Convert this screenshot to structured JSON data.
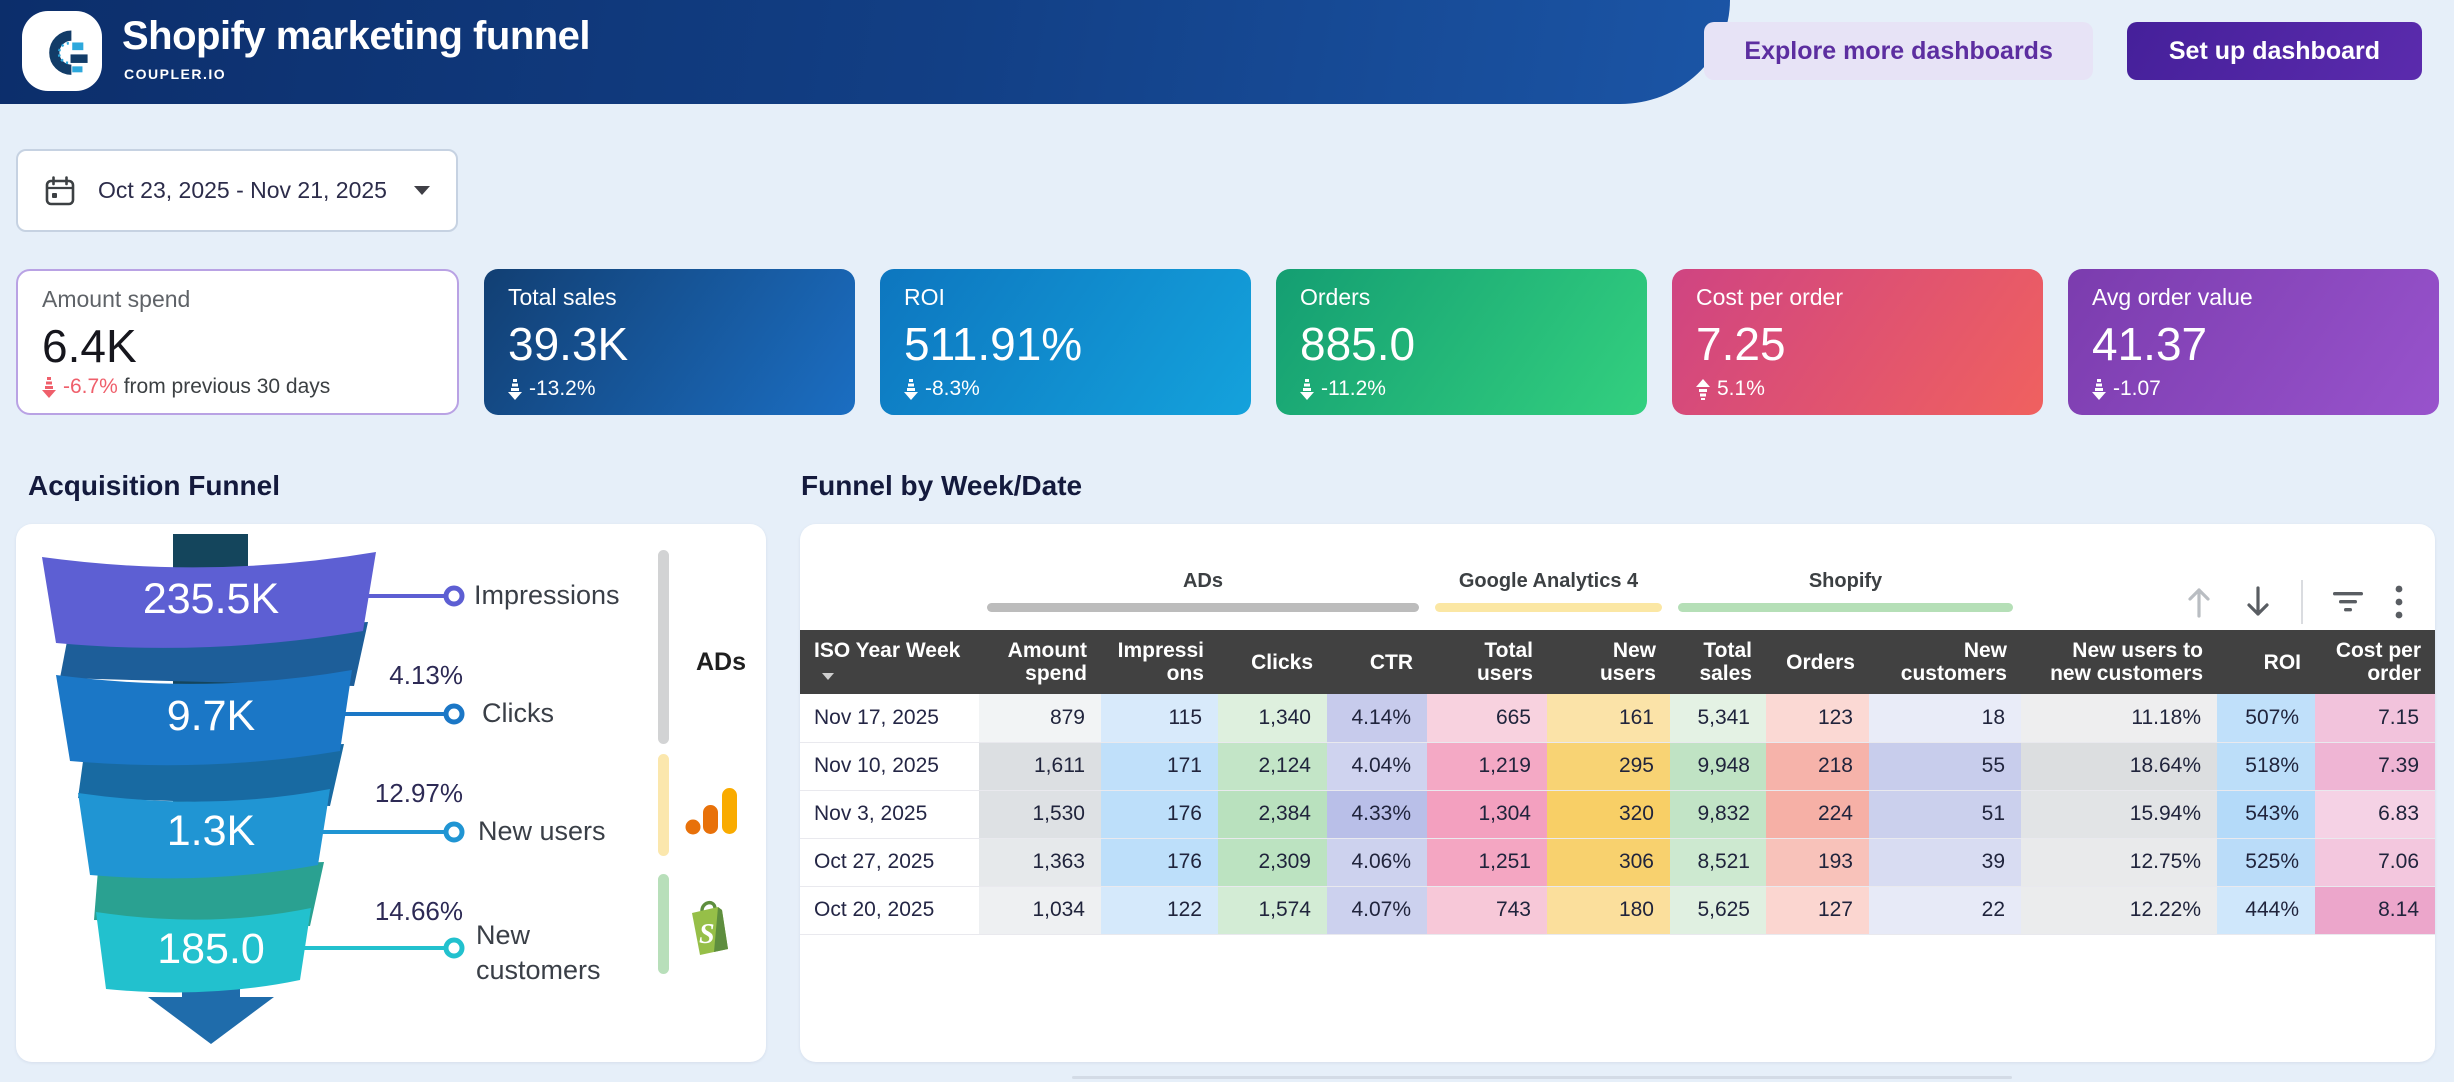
{
  "header": {
    "title": "Shopify marketing funnel",
    "subtitle": "COUPLER.IO",
    "actions": {
      "explore": "Explore more dashboards",
      "setup": "Set up dashboard"
    }
  },
  "filters": {
    "date_range": "Oct 23, 2025 - Nov 21, 2025"
  },
  "kpis": [
    {
      "label": "Amount spend",
      "value": "6.4K",
      "delta": "-6.7%",
      "note": " from previous 30 days",
      "direction": "down"
    },
    {
      "label": "Total sales",
      "value": "39.3K",
      "delta": "-13.2%",
      "note": "",
      "direction": "down"
    },
    {
      "label": "ROI",
      "value": "511.91%",
      "delta": "-8.3%",
      "note": "",
      "direction": "down"
    },
    {
      "label": "Orders",
      "value": "885.0",
      "delta": "-11.2%",
      "note": "",
      "direction": "down"
    },
    {
      "label": "Cost per order",
      "value": "7.25",
      "delta": "5.1%",
      "note": "",
      "direction": "up"
    },
    {
      "label": "Avg order value",
      "value": "41.37",
      "delta": "-1.07",
      "note": "",
      "direction": "down"
    }
  ],
  "funnel": {
    "heading": "Acquisition Funnel",
    "stages": [
      {
        "value": "235.5K",
        "label": "Impressions",
        "conversion": ""
      },
      {
        "value": "9.7K",
        "label": "Clicks",
        "conversion": "4.13%"
      },
      {
        "value": "1.3K",
        "label": "New users",
        "conversion": "12.97%"
      },
      {
        "value": "185.0",
        "label": "New customers",
        "conversion": "14.66%"
      }
    ],
    "sources": {
      "ads_label": "ADs",
      "ga_icon": "google-analytics-icon",
      "shopify_icon": "shopify-icon"
    }
  },
  "table": {
    "heading": "Funnel by Week/Date",
    "groups": [
      {
        "label": "ADs"
      },
      {
        "label": "Google Analytics 4"
      },
      {
        "label": "Shopify"
      }
    ],
    "columns": [
      "ISO Year Week",
      "Amount spend",
      "Impressions",
      "Clicks",
      "CTR",
      "Total users",
      "New users",
      "Total sales",
      "Orders",
      "New customers",
      "New users to new customers",
      "ROI",
      "Cost per order"
    ],
    "rows": [
      {
        "date": "Nov 17, 2025",
        "values": [
          "879",
          "115",
          "1,340",
          "4.14%",
          "665",
          "161",
          "5,341",
          "123",
          "18",
          "11.18%",
          "507%",
          "7.15"
        ],
        "colors": [
          "#f2f4f5",
          "#d8eafb",
          "#def0de",
          "#c7cbec",
          "#f8d2df",
          "#fbe3a8",
          "#e4f2e4",
          "#fbd9d4",
          "#e9ecf8",
          "#eeeeef",
          "#c0e0fa",
          "#f2c3dc"
        ]
      },
      {
        "date": "Nov 10, 2025",
        "values": [
          "1,611",
          "171",
          "2,124",
          "4.04%",
          "1,219",
          "295",
          "9,948",
          "218",
          "55",
          "18.64%",
          "518%",
          "7.39"
        ],
        "colors": [
          "#dcdfe2",
          "#c0e0fa",
          "#c3e5c7",
          "#cfd3ef",
          "#f4a9c5",
          "#f8d374",
          "#c0e3c4",
          "#f6b3aa",
          "#c8cdec",
          "#dcdee0",
          "#bcdef9",
          "#efb5d4"
        ]
      },
      {
        "date": "Nov 3, 2025",
        "values": [
          "1,530",
          "176",
          "2,384",
          "4.33%",
          "1,304",
          "320",
          "9,832",
          "224",
          "51",
          "15.94%",
          "543%",
          "6.83"
        ],
        "colors": [
          "#dee1e4",
          "#bddffa",
          "#b9e1be",
          "#b9bfe8",
          "#f3a0bf",
          "#f8cf66",
          "#c2e4c6",
          "#f6b0a6",
          "#cbd0ed",
          "#e2e4e6",
          "#b4daf9",
          "#f5d2e5"
        ]
      },
      {
        "date": "Oct 27, 2025",
        "values": [
          "1,363",
          "176",
          "2,309",
          "4.06%",
          "1,251",
          "306",
          "8,521",
          "193",
          "39",
          "12.75%",
          "525%",
          "7.06"
        ],
        "colors": [
          "#e6e9eb",
          "#bddffa",
          "#bce3c1",
          "#cdd2ee",
          "#f4a6c2",
          "#f8d16e",
          "#cde9d0",
          "#f8c2ba",
          "#d8dcf2",
          "#e9eaeb",
          "#badcf9",
          "#f3c7de"
        ]
      },
      {
        "date": "Oct 20, 2025",
        "values": [
          "1,034",
          "122",
          "1,574",
          "4.07%",
          "743",
          "180",
          "5,625",
          "127",
          "22",
          "12.22%",
          "444%",
          "8.14"
        ],
        "colors": [
          "#eef0f2",
          "#d5e9fb",
          "#d3ecd5",
          "#ccd1ee",
          "#f7c8d8",
          "#fbdf9c",
          "#e0f0e1",
          "#fbd6d0",
          "#e7eaf7",
          "#ebeced",
          "#cfe7fb",
          "#eca6cb"
        ]
      }
    ]
  },
  "chart_data": [
    {
      "type": "funnel",
      "title": "Acquisition Funnel",
      "stages": [
        "Impressions",
        "Clicks",
        "New users",
        "New customers"
      ],
      "values": [
        235500,
        9700,
        1300,
        185
      ],
      "conversion_pct": [
        null,
        4.13,
        12.97,
        14.66
      ],
      "sources": [
        "ADs",
        "Google Analytics 4",
        "Shopify"
      ]
    },
    {
      "type": "table",
      "title": "Funnel by Week/Date",
      "columns": [
        "ISO Year Week",
        "Amount spend",
        "Impressions",
        "Clicks",
        "CTR",
        "Total users",
        "New users",
        "Total sales",
        "Orders",
        "New customers",
        "New users to new customers",
        "ROI",
        "Cost per order"
      ],
      "rows": [
        [
          "Nov 17, 2025",
          879,
          115,
          1340,
          "4.14%",
          665,
          161,
          5341,
          123,
          18,
          "11.18%",
          "507%",
          7.15
        ],
        [
          "Nov 10, 2025",
          1611,
          171,
          2124,
          "4.04%",
          1219,
          295,
          9948,
          218,
          55,
          "18.64%",
          "518%",
          7.39
        ],
        [
          "Nov 3, 2025",
          1530,
          176,
          2384,
          "4.33%",
          1304,
          320,
          9832,
          224,
          51,
          "15.94%",
          "543%",
          6.83
        ],
        [
          "Oct 27, 2025",
          1363,
          176,
          2309,
          "4.06%",
          1251,
          306,
          8521,
          193,
          39,
          "12.75%",
          "525%",
          7.06
        ],
        [
          "Oct 20, 2025",
          1034,
          122,
          1574,
          "4.07%",
          743,
          180,
          5625,
          127,
          22,
          "12.22%",
          "444%",
          8.14
        ]
      ]
    }
  ]
}
